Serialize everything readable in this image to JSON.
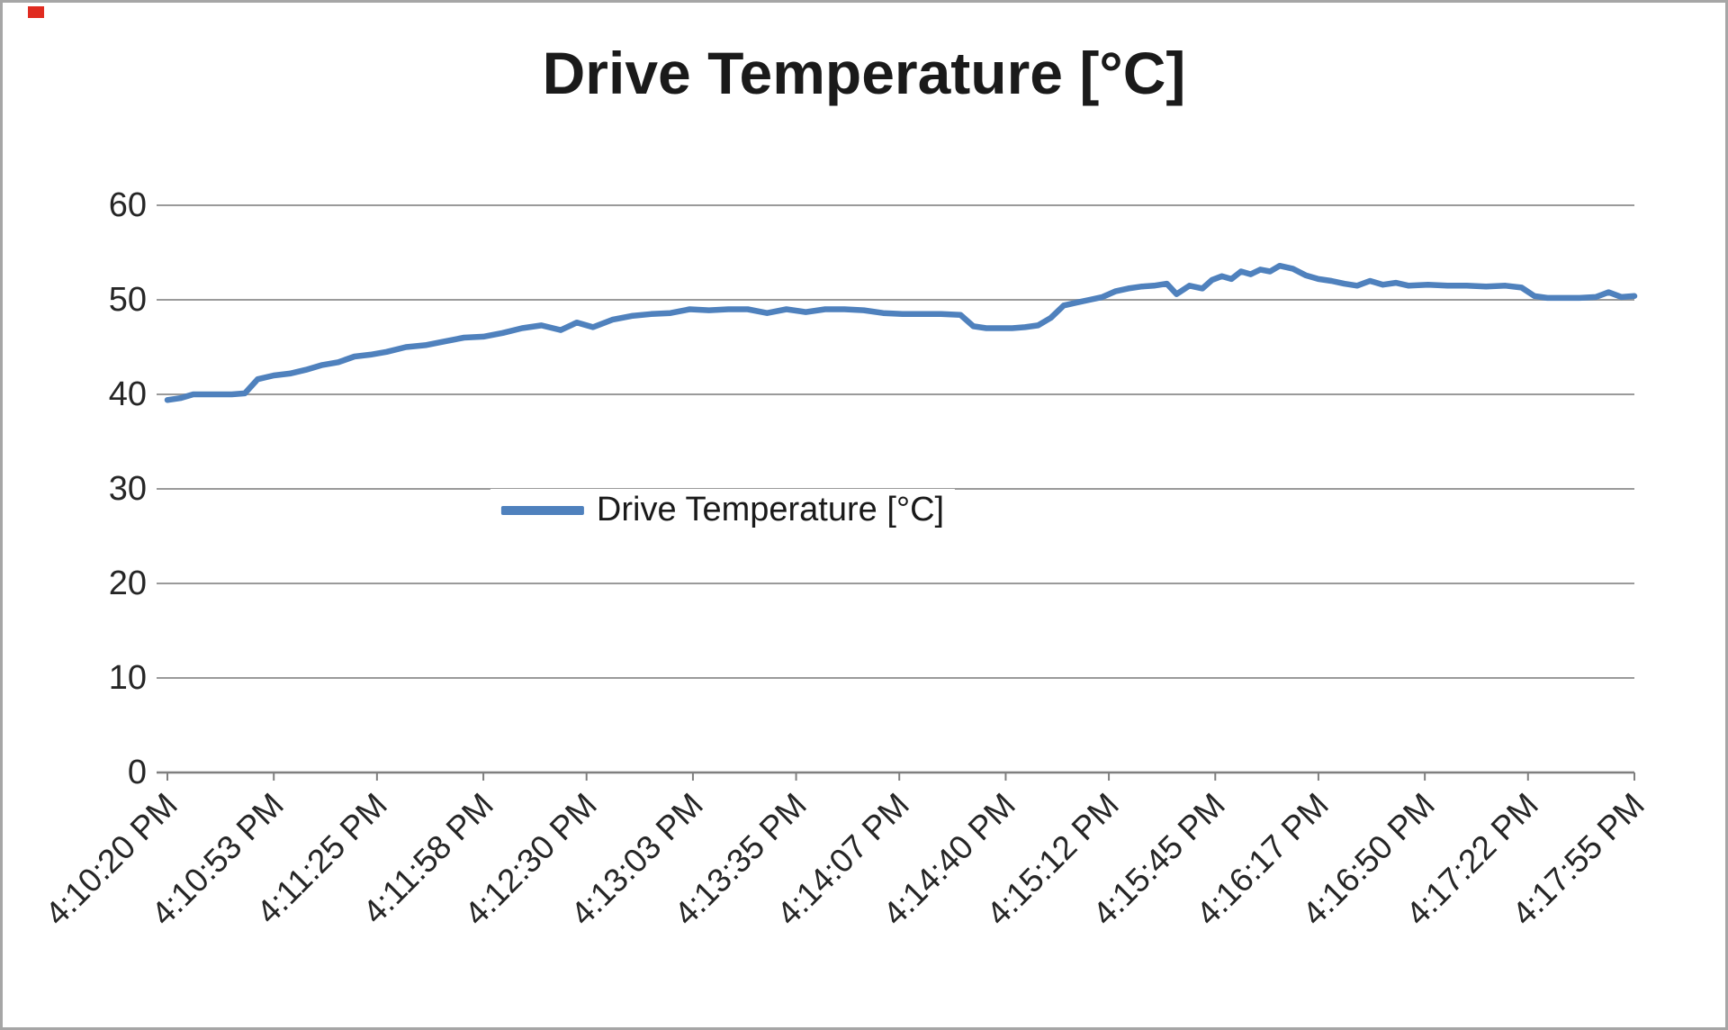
{
  "chart_data": {
    "type": "line",
    "title": "Drive Temperature [°C]",
    "xlabel": "",
    "ylabel": "",
    "ylim": [
      0,
      60
    ],
    "y_ticks": [
      0,
      10,
      20,
      30,
      40,
      50,
      60
    ],
    "grid": "horizontal",
    "legend": {
      "label": "Drive Temperature [°C]",
      "position": "center"
    },
    "line_color": "#4F81BD",
    "grid_color": "#9a9a9a",
    "axis_color": "#7f7f7f",
    "x_range_seconds": [
      0,
      455
    ],
    "x_tick_labels": [
      "4:10:20 PM",
      "4:10:53 PM",
      "4:11:25 PM",
      "4:11:58 PM",
      "4:12:30 PM",
      "4:13:03 PM",
      "4:13:35 PM",
      "4:14:07 PM",
      "4:14:40 PM",
      "4:15:12 PM",
      "4:15:45 PM",
      "4:16:17 PM",
      "4:16:50 PM",
      "4:17:22 PM",
      "4:17:55 PM"
    ],
    "x_tick_seconds": [
      0,
      33,
      65,
      98,
      130,
      163,
      195,
      227,
      260,
      292,
      325,
      357,
      390,
      422,
      455
    ],
    "series": [
      {
        "name": "Drive Temperature [°C]",
        "points": [
          [
            0,
            39.4
          ],
          [
            4,
            39.6
          ],
          [
            8,
            40
          ],
          [
            14,
            40
          ],
          [
            20,
            40
          ],
          [
            24,
            40.1
          ],
          [
            28,
            41.6
          ],
          [
            33,
            42
          ],
          [
            38,
            42.2
          ],
          [
            43,
            42.6
          ],
          [
            48,
            43.1
          ],
          [
            53,
            43.4
          ],
          [
            58,
            44
          ],
          [
            63,
            44.2
          ],
          [
            68,
            44.5
          ],
          [
            74,
            45
          ],
          [
            80,
            45.2
          ],
          [
            86,
            45.6
          ],
          [
            92,
            46
          ],
          [
            98,
            46.1
          ],
          [
            104,
            46.5
          ],
          [
            110,
            47
          ],
          [
            116,
            47.3
          ],
          [
            122,
            46.8
          ],
          [
            127,
            47.6
          ],
          [
            132,
            47.1
          ],
          [
            138,
            47.9
          ],
          [
            144,
            48.3
          ],
          [
            150,
            48.5
          ],
          [
            156,
            48.6
          ],
          [
            162,
            49
          ],
          [
            168,
            48.9
          ],
          [
            174,
            49
          ],
          [
            180,
            49
          ],
          [
            186,
            48.6
          ],
          [
            192,
            49
          ],
          [
            198,
            48.7
          ],
          [
            204,
            49
          ],
          [
            210,
            49
          ],
          [
            216,
            48.9
          ],
          [
            222,
            48.6
          ],
          [
            228,
            48.5
          ],
          [
            234,
            48.5
          ],
          [
            240,
            48.5
          ],
          [
            246,
            48.4
          ],
          [
            250,
            47.2
          ],
          [
            254,
            47
          ],
          [
            258,
            47
          ],
          [
            262,
            47
          ],
          [
            266,
            47.1
          ],
          [
            270,
            47.3
          ],
          [
            274,
            48.1
          ],
          [
            278,
            49.4
          ],
          [
            282,
            49.7
          ],
          [
            286,
            50
          ],
          [
            290,
            50.3
          ],
          [
            294,
            50.9
          ],
          [
            298,
            51.2
          ],
          [
            302,
            51.4
          ],
          [
            306,
            51.5
          ],
          [
            310,
            51.7
          ],
          [
            313,
            50.6
          ],
          [
            317,
            51.5
          ],
          [
            321,
            51.2
          ],
          [
            324,
            52.1
          ],
          [
            327,
            52.5
          ],
          [
            330,
            52.2
          ],
          [
            333,
            53
          ],
          [
            336,
            52.7
          ],
          [
            339,
            53.2
          ],
          [
            342,
            53
          ],
          [
            345,
            53.6
          ],
          [
            349,
            53.3
          ],
          [
            353,
            52.6
          ],
          [
            357,
            52.2
          ],
          [
            361,
            52
          ],
          [
            365,
            51.7
          ],
          [
            369,
            51.5
          ],
          [
            373,
            52
          ],
          [
            377,
            51.6
          ],
          [
            381,
            51.8
          ],
          [
            385,
            51.5
          ],
          [
            391,
            51.6
          ],
          [
            397,
            51.5
          ],
          [
            403,
            51.5
          ],
          [
            409,
            51.4
          ],
          [
            415,
            51.5
          ],
          [
            420,
            51.3
          ],
          [
            424,
            50.4
          ],
          [
            428,
            50.2
          ],
          [
            433,
            50.2
          ],
          [
            438,
            50.2
          ],
          [
            443,
            50.3
          ],
          [
            447,
            50.8
          ],
          [
            451,
            50.3
          ],
          [
            455,
            50.4
          ]
        ]
      }
    ]
  }
}
